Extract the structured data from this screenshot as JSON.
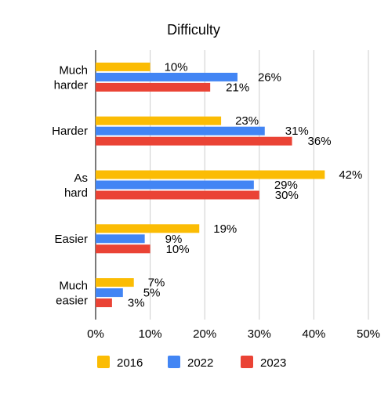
{
  "chart_data": {
    "type": "bar",
    "orientation": "horizontal",
    "title": "Difficulty",
    "categories": [
      "Much harder",
      "Harder",
      "As hard",
      "Easier",
      "Much easier"
    ],
    "series": [
      {
        "name": "2016",
        "color": "#fbbc04",
        "values": [
          10,
          23,
          42,
          19,
          7
        ]
      },
      {
        "name": "2022",
        "color": "#4285f4",
        "values": [
          26,
          31,
          29,
          9,
          5
        ]
      },
      {
        "name": "2023",
        "color": "#ea4335",
        "values": [
          21,
          36,
          30,
          10,
          3
        ]
      }
    ],
    "xticks": [
      "0%",
      "10%",
      "20%",
      "30%",
      "40%",
      "50%"
    ],
    "xlim": [
      0,
      50
    ],
    "value_suffix": "%",
    "grid": true,
    "legend_position": "bottom"
  }
}
